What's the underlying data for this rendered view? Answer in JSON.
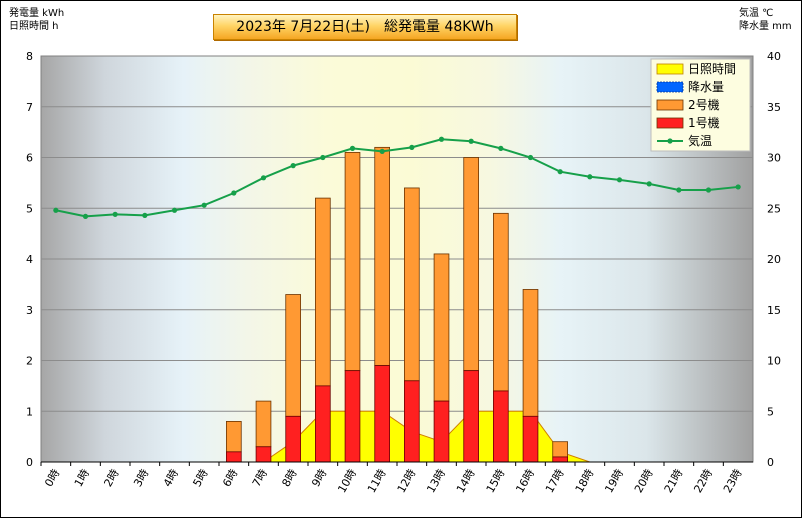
{
  "header": {
    "title": "2023年 7月22日(土)　総発電量 48KWh",
    "left_unit_1": "発電量 kWh",
    "left_unit_2": "日照時間 h",
    "right_unit_1": "気温 ℃",
    "right_unit_2": "降水量 mm"
  },
  "chart_data": {
    "type": "bar",
    "categories": [
      "0時",
      "1時",
      "2時",
      "3時",
      "4時",
      "5時",
      "6時",
      "7時",
      "8時",
      "9時",
      "10時",
      "11時",
      "12時",
      "13時",
      "14時",
      "15時",
      "16時",
      "17時",
      "18時",
      "19時",
      "20時",
      "21時",
      "22時",
      "23時"
    ],
    "y_left": {
      "min": 0,
      "max": 8,
      "ticks": [
        "0",
        "1",
        "2",
        "3",
        "4",
        "5",
        "6",
        "7",
        "8"
      ]
    },
    "y_right": {
      "min": 0,
      "max": 40,
      "ticks": [
        "0",
        "5",
        "10",
        "15",
        "20",
        "25",
        "30",
        "35",
        "40"
      ]
    },
    "series": [
      {
        "name": "日照時間",
        "type": "area",
        "axis": "left",
        "color": "#ffff00",
        "values": [
          0,
          0,
          0,
          0,
          0,
          0,
          0,
          0,
          0.4,
          1.0,
          1.0,
          1.0,
          0.6,
          0.4,
          1.0,
          1.0,
          1.0,
          0.2,
          0,
          0,
          0,
          0,
          0,
          0
        ]
      },
      {
        "name": "降水量",
        "type": "bar",
        "axis": "right",
        "color": "#0066ff",
        "values": [
          0,
          0,
          0,
          0,
          0,
          0,
          0,
          0,
          0,
          0,
          0,
          0,
          0,
          0,
          0,
          0,
          0,
          0,
          0,
          0,
          0,
          0,
          0,
          0
        ]
      },
      {
        "name": "2号機",
        "type": "bar",
        "axis": "left",
        "color": "#ff9933",
        "values": [
          0,
          0,
          0,
          0,
          0,
          0,
          0.6,
          0.9,
          2.4,
          3.7,
          4.3,
          4.3,
          3.8,
          2.9,
          4.2,
          3.5,
          2.5,
          0.3,
          0,
          0,
          0,
          0,
          0,
          0
        ]
      },
      {
        "name": "1号機",
        "type": "bar",
        "axis": "left",
        "color": "#ff2020",
        "values": [
          0,
          0,
          0,
          0,
          0,
          0,
          0.2,
          0.3,
          0.9,
          1.5,
          1.8,
          1.9,
          1.6,
          1.2,
          1.8,
          1.4,
          0.9,
          0.1,
          0,
          0,
          0,
          0,
          0,
          0
        ]
      },
      {
        "name": "気温",
        "type": "line",
        "axis": "right",
        "color": "#16a04a",
        "values": [
          24.8,
          24.2,
          24.4,
          24.3,
          24.8,
          25.3,
          26.5,
          28.0,
          29.2,
          30.0,
          30.9,
          30.6,
          31.0,
          31.8,
          31.6,
          30.9,
          30.0,
          28.6,
          28.1,
          27.8,
          27.4,
          26.8,
          26.8,
          27.1
        ]
      }
    ],
    "grid": true,
    "legend_position": "top-right"
  }
}
